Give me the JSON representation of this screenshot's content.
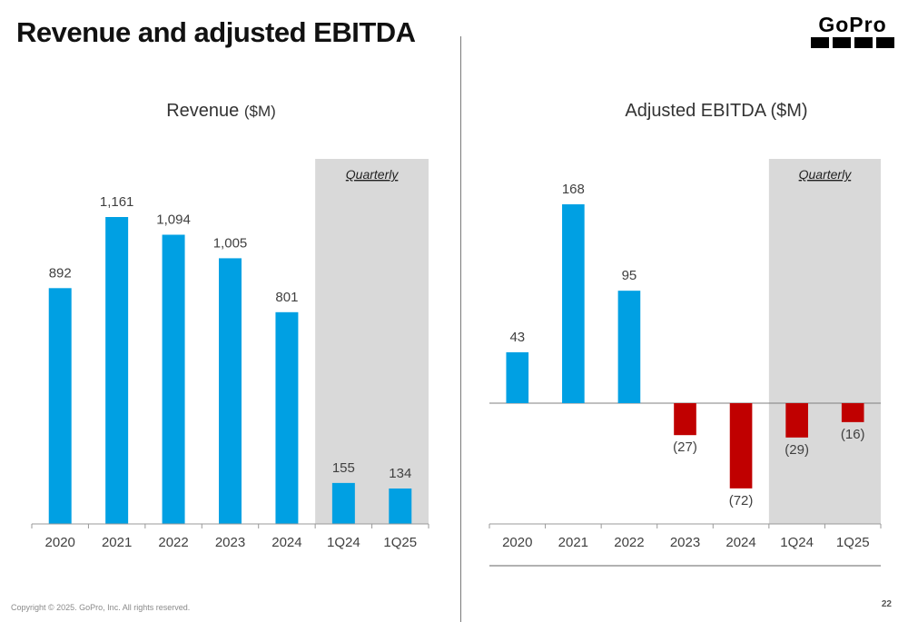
{
  "page": {
    "title": "Revenue and adjusted EBITDA",
    "logo_text": "GoPro",
    "copyright": "Copyright © 2025. GoPro, Inc. All rights reserved.",
    "page_number": "22"
  },
  "colors": {
    "bar_positive": "#00A0E3",
    "bar_negative": "#C00000",
    "quarterly_shade": "#D9D9D9",
    "axis": "#999999"
  },
  "chart_data": [
    {
      "type": "bar",
      "title": "Revenue",
      "title_unit": "($M)",
      "categories": [
        "2020",
        "2021",
        "2022",
        "2023",
        "2024",
        "1Q24",
        "1Q25"
      ],
      "values": [
        892,
        1161,
        1094,
        1005,
        801,
        155,
        134
      ],
      "value_labels": [
        "892",
        "1,161",
        "1,094",
        "1,005",
        "801",
        "155",
        "134"
      ],
      "quarterly_label": "Quarterly",
      "quarterly_categories": [
        "1Q24",
        "1Q25"
      ]
    },
    {
      "type": "bar",
      "title": "Adjusted EBITDA ($M)",
      "categories": [
        "2020",
        "2021",
        "2022",
        "2023",
        "2024",
        "1Q24",
        "1Q25"
      ],
      "values": [
        43,
        168,
        95,
        -27,
        -72,
        -29,
        -16
      ],
      "value_labels": [
        "43",
        "168",
        "95",
        "(27)",
        "(72)",
        "(29)",
        "(16)"
      ],
      "quarterly_label": "Quarterly",
      "quarterly_categories": [
        "1Q24",
        "1Q25"
      ]
    }
  ]
}
